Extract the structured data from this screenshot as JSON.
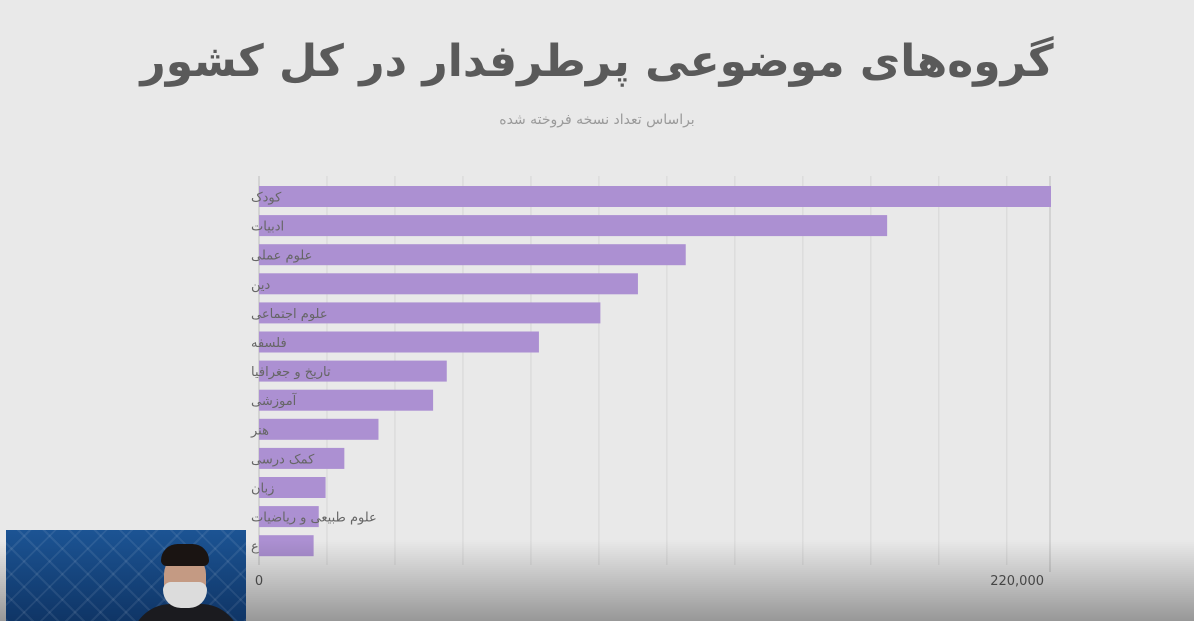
{
  "title": "گروه‌های موضوعی پرطرفدار در کل کشور",
  "subtitle": "براساس تعداد نسخه فروخته شده",
  "chart_data": {
    "type": "bar",
    "orientation": "horizontal",
    "title": "گروه‌های موضوعی پرطرفدار در کل کشور",
    "subtitle": "براساس تعداد نسخه فروخته شده",
    "categories": [
      "کودک",
      "ادبیات",
      "علوم عملی",
      "دین",
      "علوم اجتماعی",
      "فلسفه",
      "تاریخ و جغرافیا",
      "آموزشی",
      "هنر",
      "کمک درسی",
      "زبان",
      "علوم طبیعی و ریاضیات",
      "ع"
    ],
    "values": [
      232000,
      184000,
      125000,
      111000,
      100000,
      82000,
      55000,
      51000,
      35000,
      25000,
      19500,
      17500,
      16000
    ],
    "xlim": [
      0,
      232000
    ],
    "x_tick_labels": [
      "0",
      "220,000"
    ],
    "gridlines": true,
    "bar_color": "#ac90d2"
  }
}
